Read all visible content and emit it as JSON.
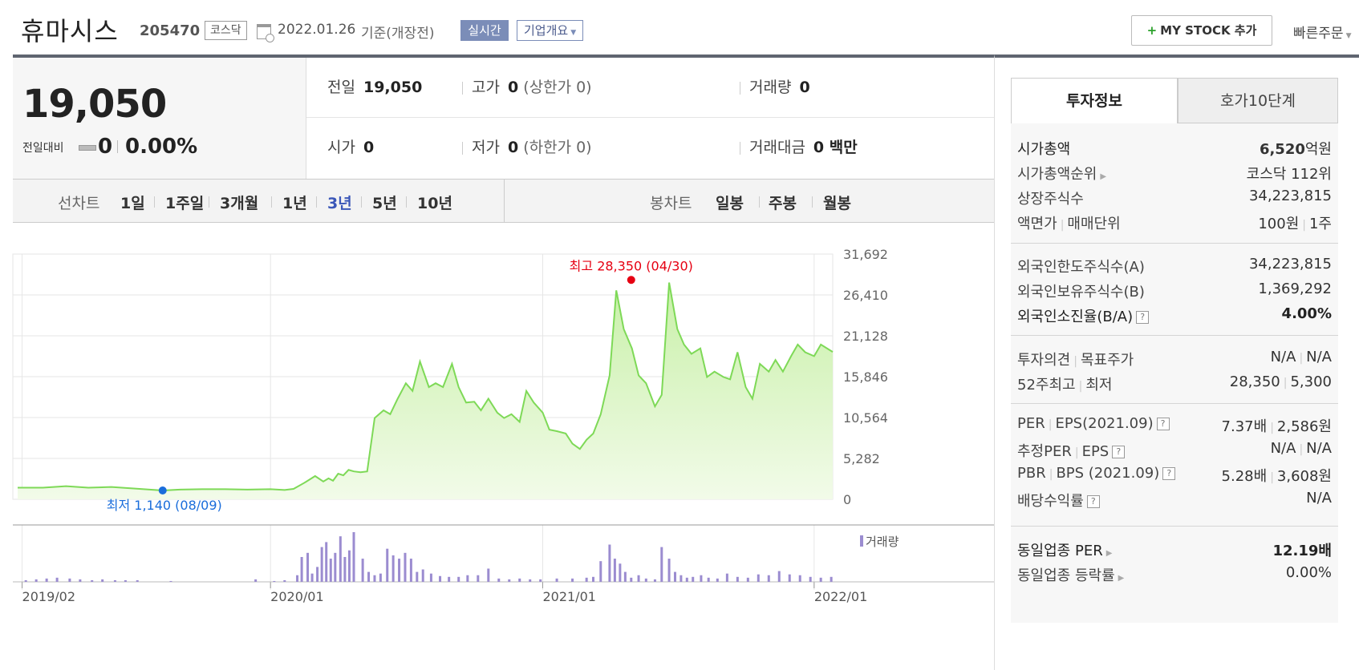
{
  "header": {
    "company_name": "휴마시스",
    "code": "205470",
    "market": "코스닥",
    "date": "2022.01.26",
    "basis": "기준(개장전)",
    "realtime": "실시간",
    "company_info": "기업개요",
    "my_stock": "MY STOCK 추가",
    "quick_order": "빠른주문"
  },
  "summary": {
    "price": "19,050",
    "change_label": "전일대비",
    "change": "0",
    "change_rate": "0.00%",
    "prev_label": "전일",
    "prev": "19,050",
    "high_label": "고가",
    "high": "0",
    "high_limit": "(상한가 0)",
    "volume_label": "거래량",
    "volume": "0",
    "open_label": "시가",
    "open": "0",
    "low_label": "저가",
    "low": "0",
    "low_limit": "(하한가 0)",
    "amount_label": "거래대금",
    "amount": "0 백만"
  },
  "tabs": {
    "line_label": "선차트",
    "line_periods": [
      "1일",
      "1주일",
      "3개월",
      "1년",
      "3년",
      "5년",
      "10년"
    ],
    "active": "3년",
    "candle_label": "봉차트",
    "candle_periods": [
      "일봉",
      "주봉",
      "월봉"
    ]
  },
  "right_panel": {
    "tab_active": "투자정보",
    "tab_inactive": "호가10단계",
    "market_cap_label": "시가총액",
    "market_cap": "6,520",
    "market_cap_unit": "억원",
    "rank_label": "시가총액순위",
    "rank": "코스닥 112위",
    "shares_label": "상장주식수",
    "shares": "34,223,815",
    "par_label": "액면가",
    "unit_label": "매매단위",
    "par": "100원",
    "unit": "1주",
    "foreign_limit_label": "외국인한도주식수(A)",
    "foreign_limit": "34,223,815",
    "foreign_hold_label": "외국인보유주식수(B)",
    "foreign_hold": "1,369,292",
    "foreign_rate_label": "외국인소진율(B/A)",
    "foreign_rate": "4.00%",
    "opinion_label": "투자의견",
    "target_label": "목표주가",
    "opinion": "N/A",
    "target": "N/A",
    "w52_label": "52주최고",
    "w52_low_label": "최저",
    "w52_high": "28,350",
    "w52_low": "5,300",
    "per_label": "PER",
    "eps_label": "EPS(2021.09)",
    "per": "7.37배",
    "eps": "2,586원",
    "est_per_label": "추정PER",
    "est_eps_label": "EPS",
    "est_per": "N/A",
    "est_eps": "N/A",
    "pbr_label": "PBR",
    "bps_label": "BPS (2021.09)",
    "pbr": "5.28배",
    "bps": "3,608원",
    "div_label": "배당수익률",
    "div": "N/A",
    "industry_per_label": "동일업종 PER",
    "industry_per": "12.19배",
    "industry_change_label": "동일업종 등락률",
    "industry_change": "0.00%"
  },
  "colors": {
    "line": "#7ed957",
    "area_top": "#c8f0a8",
    "area_bottom": "#f2fbe9",
    "high_marker": "#e60012",
    "low_marker": "#1a6ddb",
    "volume": "#9b8cd0",
    "active_tab": "#3b57b8"
  },
  "chart_data": {
    "type": "area",
    "y_ticks": [
      "31,692",
      "26,410",
      "21,128",
      "15,846",
      "10,564",
      "5,282",
      "0"
    ],
    "ylim": [
      0,
      31692
    ],
    "x_tick_labels": [
      "2019/02",
      "2020/01",
      "2021/01",
      "2022/01"
    ],
    "x_tick_dates": [
      "2019-02-01",
      "2020-01-01",
      "2021-01-01",
      "2022-01-01"
    ],
    "xlim": [
      "2019-01-26",
      "2022-01-26"
    ],
    "high_label": "최고 28,350 (04/30)",
    "high_point": {
      "date": "2021-04-30",
      "value": 28350
    },
    "low_label": "최저 1,140 (08/09)",
    "low_point": {
      "date": "2019-08-09",
      "value": 1140
    },
    "volume_label": "거래량",
    "grid": true,
    "series": [
      {
        "dates": [
          "2019-01-26",
          "2019-03-01",
          "2019-04-01",
          "2019-05-01",
          "2019-06-01",
          "2019-07-01",
          "2019-08-09",
          "2019-09-01",
          "2019-10-01",
          "2019-11-01",
          "2019-12-01",
          "2020-01-01",
          "2020-01-20",
          "2020-02-01",
          "2020-02-15",
          "2020-03-01",
          "2020-03-12",
          "2020-03-19",
          "2020-03-25",
          "2020-04-01",
          "2020-04-08",
          "2020-04-15",
          "2020-04-22",
          "2020-05-01",
          "2020-05-10",
          "2020-05-20",
          "2020-06-01",
          "2020-06-10",
          "2020-06-20",
          "2020-07-01",
          "2020-07-10",
          "2020-07-20",
          "2020-08-01",
          "2020-08-10",
          "2020-08-20",
          "2020-09-01",
          "2020-09-10",
          "2020-09-20",
          "2020-10-01",
          "2020-10-10",
          "2020-10-20",
          "2020-11-01",
          "2020-11-10",
          "2020-11-20",
          "2020-12-01",
          "2020-12-10",
          "2020-12-20",
          "2021-01-01",
          "2021-01-10",
          "2021-01-20",
          "2021-02-01",
          "2021-02-10",
          "2021-02-20",
          "2021-03-01",
          "2021-03-10",
          "2021-03-20",
          "2021-04-01",
          "2021-04-10",
          "2021-04-20",
          "2021-05-01",
          "2021-05-10",
          "2021-05-20",
          "2021-06-01",
          "2021-06-10",
          "2021-06-20",
          "2021-07-01",
          "2021-07-10",
          "2021-07-20",
          "2021-08-01",
          "2021-08-10",
          "2021-08-20",
          "2021-09-01",
          "2021-09-10",
          "2021-09-20",
          "2021-10-01",
          "2021-10-10",
          "2021-10-20",
          "2021-11-01",
          "2021-11-10",
          "2021-11-20",
          "2021-12-01",
          "2021-12-10",
          "2021-12-20",
          "2022-01-01",
          "2022-01-10",
          "2022-01-26"
        ],
        "values": [
          1500,
          1500,
          1700,
          1500,
          1600,
          1400,
          1140,
          1250,
          1300,
          1300,
          1250,
          1300,
          1200,
          1350,
          2100,
          3000,
          2300,
          2700,
          2400,
          3300,
          3100,
          3800,
          3600,
          3500,
          3600,
          10500,
          11500,
          11000,
          13000,
          15000,
          14000,
          17800,
          14500,
          15000,
          14500,
          17500,
          14500,
          12500,
          12600,
          11500,
          13000,
          11200,
          10500,
          11000,
          10000,
          14000,
          12500,
          11200,
          9000,
          8800,
          8500,
          7200,
          6500,
          7700,
          8500,
          11000,
          16000,
          27000,
          22000,
          19500,
          16000,
          15000,
          12000,
          13500,
          28000,
          22000,
          20000,
          18800,
          19500,
          15800,
          16500,
          15800,
          15500,
          19000,
          14500,
          13000,
          17500,
          16500,
          18000,
          16500,
          18500,
          20000,
          19000,
          18500,
          20000,
          19050
        ]
      }
    ],
    "volume": {
      "dates": [
        "2019-02-06",
        "2019-02-20",
        "2019-03-06",
        "2019-03-20",
        "2019-04-06",
        "2019-04-20",
        "2019-05-06",
        "2019-05-20",
        "2019-06-06",
        "2019-06-20",
        "2019-07-06",
        "2019-08-20",
        "2019-12-12",
        "2020-01-06",
        "2020-01-20",
        "2020-02-06",
        "2020-02-12",
        "2020-02-20",
        "2020-02-26",
        "2020-03-04",
        "2020-03-10",
        "2020-03-16",
        "2020-03-22",
        "2020-03-28",
        "2020-04-04",
        "2020-04-10",
        "2020-04-16",
        "2020-04-22",
        "2020-05-04",
        "2020-05-12",
        "2020-05-20",
        "2020-05-28",
        "2020-06-06",
        "2020-06-14",
        "2020-06-22",
        "2020-06-30",
        "2020-07-08",
        "2020-07-16",
        "2020-07-24",
        "2020-08-04",
        "2020-08-16",
        "2020-08-28",
        "2020-09-10",
        "2020-09-22",
        "2020-10-06",
        "2020-10-20",
        "2020-11-03",
        "2020-11-17",
        "2020-12-01",
        "2020-12-15",
        "2020-12-29",
        "2021-01-20",
        "2021-02-10",
        "2021-03-01",
        "2021-03-10",
        "2021-03-20",
        "2021-04-01",
        "2021-04-08",
        "2021-04-15",
        "2021-04-22",
        "2021-04-30",
        "2021-05-10",
        "2021-05-20",
        "2021-06-01",
        "2021-06-10",
        "2021-06-20",
        "2021-06-28",
        "2021-07-06",
        "2021-07-14",
        "2021-07-22",
        "2021-08-02",
        "2021-08-12",
        "2021-08-24",
        "2021-09-06",
        "2021-09-20",
        "2021-10-04",
        "2021-10-18",
        "2021-11-01",
        "2021-11-15",
        "2021-11-29",
        "2021-12-13",
        "2021-12-27",
        "2022-01-10",
        "2022-01-24"
      ],
      "values": [
        2,
        3,
        4,
        5,
        4,
        3,
        2,
        3,
        2,
        2,
        2,
        1,
        3,
        1,
        2,
        8,
        30,
        35,
        10,
        18,
        42,
        48,
        28,
        35,
        55,
        30,
        38,
        60,
        28,
        12,
        8,
        10,
        40,
        32,
        28,
        35,
        28,
        12,
        15,
        10,
        7,
        6,
        6,
        8,
        8,
        16,
        4,
        3,
        4,
        3,
        3,
        4,
        4,
        5,
        6,
        25,
        45,
        28,
        22,
        12,
        5,
        8,
        4,
        3,
        42,
        28,
        12,
        8,
        5,
        6,
        8,
        5,
        4,
        10,
        6,
        5,
        9,
        8,
        13,
        9,
        8,
        6,
        5,
        6
      ]
    }
  }
}
